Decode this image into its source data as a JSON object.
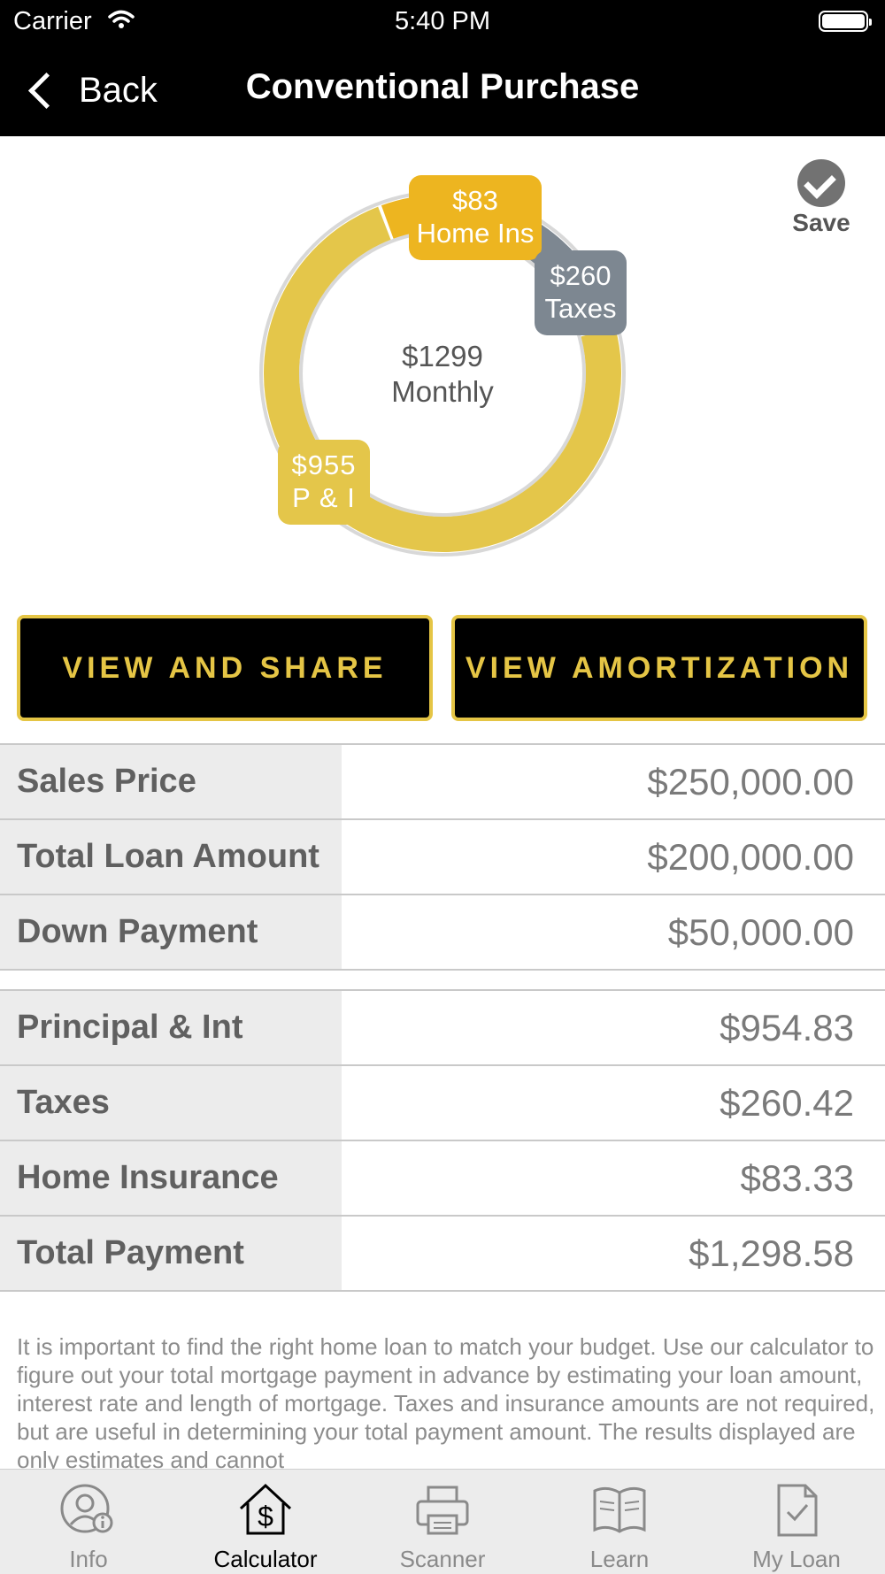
{
  "status_bar": {
    "carrier": "Carrier",
    "time": "5:40 PM"
  },
  "nav": {
    "back_label": "Back",
    "title": "Conventional Purchase"
  },
  "save_label": "Save",
  "chart": {
    "center_amount": "$1299",
    "center_label": "Monthly",
    "segments": [
      {
        "amount": "$83",
        "label": "Home Ins",
        "value": 83,
        "color": "#edb520"
      },
      {
        "amount": "$260",
        "label": "Taxes",
        "value": 260,
        "color": "#7d8791"
      },
      {
        "amount": "$955",
        "label": "P & I",
        "value": 955,
        "color": "#e4c64a"
      }
    ]
  },
  "buttons": {
    "view_share": "VIEW AND SHARE",
    "view_amortization": "VIEW AMORTIZATION"
  },
  "loan_summary": [
    {
      "label": "Sales Price",
      "value": "$250,000.00"
    },
    {
      "label": "Total Loan Amount",
      "value": "$200,000.00"
    },
    {
      "label": "Down Payment",
      "value": "$50,000.00"
    }
  ],
  "payment_summary": [
    {
      "label": "Principal & Int",
      "value": "$954.83"
    },
    {
      "label": "Taxes",
      "value": "$260.42"
    },
    {
      "label": "Home Insurance",
      "value": "$83.33"
    },
    {
      "label": "Total Payment",
      "value": "$1,298.58"
    }
  ],
  "description": "It is important to find the right home loan to match your budget. Use our calculator to figure out your total mortgage payment in advance by estimating your loan amount, interest rate and length of mortgage. Taxes and insurance amounts are not required, but are useful in determining your total payment amount.  The results displayed are only estimates and cannot",
  "tabs": [
    {
      "label": "Info",
      "icon": "user-info-icon",
      "active": false
    },
    {
      "label": "Calculator",
      "icon": "house-dollar-icon",
      "active": true
    },
    {
      "label": "Scanner",
      "icon": "printer-icon",
      "active": false
    },
    {
      "label": "Learn",
      "icon": "book-icon",
      "active": false
    },
    {
      "label": "My Loan",
      "icon": "document-check-icon",
      "active": false
    }
  ]
}
